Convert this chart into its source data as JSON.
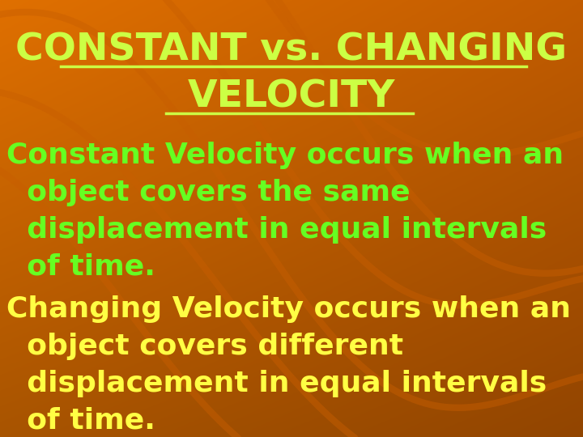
{
  "title_line1": "CONSTANT vs. CHANGING",
  "title_line2": "VELOCITY",
  "title_color": "#ccff44",
  "title_fontsize": 34,
  "body1_line1": "Constant Velocity occurs when an",
  "body1_line2": "  object covers the same",
  "body1_line3": "  displacement in equal intervals",
  "body1_line4": "  of time.",
  "body1_color": "#66ff22",
  "body2_line1": "Changing Velocity occurs when an",
  "body2_line2": "  object covers different",
  "body2_line3": "  displacement in equal intervals",
  "body2_line4": "  of time.",
  "body2_color": "#ffff44",
  "body_fontsize": 26,
  "bg_color": "#e07800",
  "fig_width": 7.2,
  "fig_height": 5.4,
  "dpi": 100,
  "arc_color": "#c85e00",
  "arc_color2": "#b05000"
}
